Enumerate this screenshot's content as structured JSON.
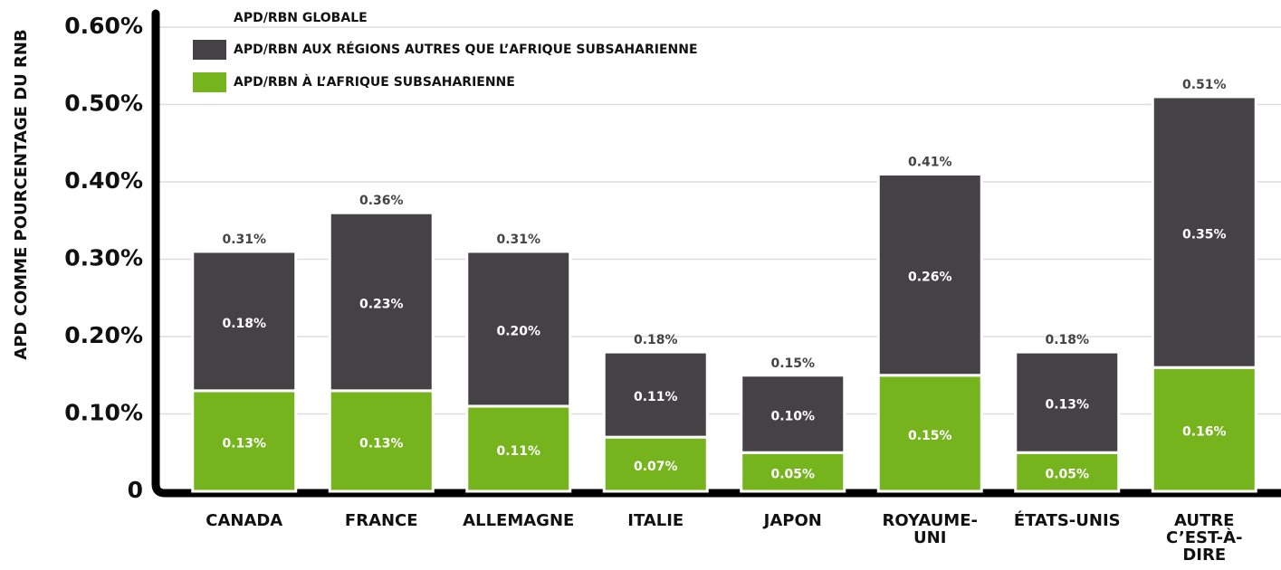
{
  "chart_data": {
    "type": "stacked_bar",
    "y_label": "APD COMME POURCENTAGE DU RNB",
    "categories": [
      "CANADA",
      "FRANCE",
      "ALLEMAGNE",
      "ITALIE",
      "JAPON",
      "ROYAUME-UNI",
      "ÉTATS-UNIS",
      "AUTRE C’EST-À-DIRE"
    ],
    "series": [
      {
        "name": "APD/RBN À L’AFRIQUE SUBSAHARIENNE",
        "color": "#76b41e",
        "values": [
          0.13,
          0.13,
          0.11,
          0.07,
          0.05,
          0.15,
          0.05,
          0.16
        ],
        "value_labels": [
          "0.13%",
          "0.13%",
          "0.11%",
          "0.07%",
          "0.05%",
          "0.15%",
          "0.05%",
          "0.16%"
        ]
      },
      {
        "name": "APD/RBN AUX RÉGIONS AUTRES QUE L’AFRIQUE SUBSAHARIENNE",
        "color": "#444245",
        "values": [
          0.18,
          0.23,
          0.2,
          0.11,
          0.1,
          0.26,
          0.13,
          0.35
        ],
        "value_labels": [
          "0.18%",
          "0.23%",
          "0.20%",
          "0.11%",
          "0.10%",
          "0.26%",
          "0.13%",
          "0.35%"
        ]
      }
    ],
    "totals": {
      "name": "APD/RBN GLOBALE",
      "values": [
        0.31,
        0.36,
        0.31,
        0.18,
        0.15,
        0.41,
        0.18,
        0.51
      ],
      "value_labels": [
        "0.31%",
        "0.36%",
        "0.31%",
        "0.18%",
        "0.15%",
        "0.41%",
        "0.18%",
        "0.51%"
      ]
    },
    "ylim": [
      0,
      0.6
    ],
    "yticks": [
      0,
      {
        "value": 0.1,
        "label": "0.10%"
      },
      {
        "value": 0.2,
        "label": "0.20%"
      },
      {
        "value": 0.3,
        "label": "0.30%"
      },
      {
        "value": 0.4,
        "label": "0.40%"
      },
      {
        "value": 0.5,
        "label": "0.50%"
      },
      {
        "value": 0.6,
        "label": "0.60%"
      }
    ],
    "grid": true
  }
}
